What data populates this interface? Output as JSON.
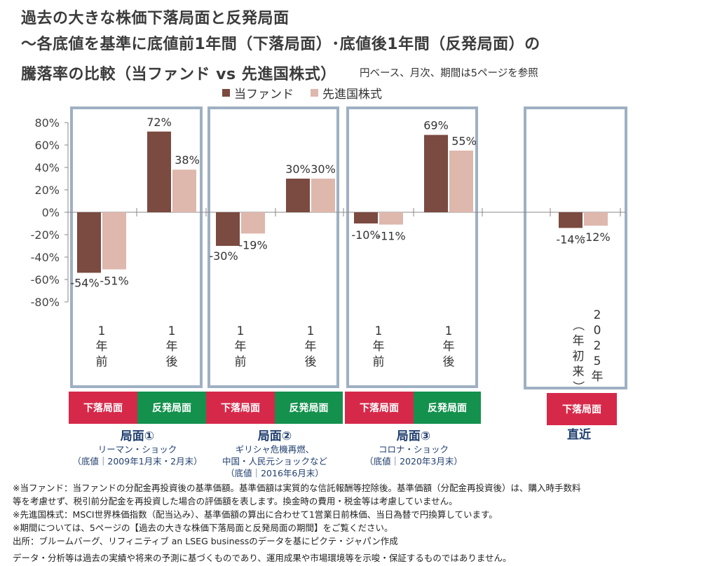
{
  "header": {
    "title_line1": "過去の大きな株価下落局面と反発局面",
    "title_line2": "～各底値を基準に底値前1年間（下落局面）･底値後1年間（反発局面）の",
    "title_line3": "騰落率の比較（当ファンド vs 先進国株式）",
    "note": "円ベース、月次、期間は5ページを参照"
  },
  "colors": {
    "fund": "#7b4a40",
    "msci": "#deb7ad",
    "frame": "#9fb0c3",
    "decline": "#d6294a",
    "rebound": "#13914d",
    "axis": "#888888",
    "phase_text": "#1f3e6e"
  },
  "chart_data": {
    "type": "bar",
    "title": "騰落率の比較（当ファンド vs 先進国株式）",
    "xlabel": "",
    "ylabel": "",
    "ylim": [
      -80,
      80
    ],
    "yticks": [
      80,
      60,
      40,
      20,
      0,
      -20,
      -40,
      -60,
      -80
    ],
    "ytick_labels": [
      "80%",
      "60%",
      "40%",
      "20%",
      "0%",
      "-20%",
      "-40%",
      "-60%",
      "-80%"
    ],
    "grid": false,
    "legend": "top-center",
    "categories": [
      "1年前",
      "1年後",
      "1年前",
      "1年後",
      "1年前",
      "1年後",
      "2025年（年初来）"
    ],
    "category_labels_vertical": [
      [
        "1",
        "年",
        "前"
      ],
      [
        "1",
        "年",
        "後"
      ],
      [
        "1",
        "年",
        "前"
      ],
      [
        "1",
        "年",
        "後"
      ],
      [
        "1",
        "年",
        "前"
      ],
      [
        "1",
        "年",
        "後"
      ],
      [
        "2",
        "0",
        "2",
        "5",
        "年"
      ]
    ],
    "ytd_sub_label": [
      "（",
      "年",
      "初",
      "来",
      "）"
    ],
    "series": [
      {
        "name": "当ファンド",
        "values": [
          -54,
          72,
          -30,
          30,
          -10,
          69,
          -14
        ],
        "labels": [
          "-54%",
          "72%",
          "-30%",
          "30%",
          "-10%",
          "69%",
          "-14%"
        ]
      },
      {
        "name": "先進国株式",
        "values": [
          -51,
          38,
          -19,
          30,
          -11,
          55,
          -12
        ],
        "labels": [
          "-51%",
          "38%",
          "-19%",
          "30%",
          "-11%",
          "55%",
          "-12%"
        ]
      }
    ]
  },
  "phases": [
    {
      "decline_label": "下落局面",
      "rebound_label": "反発局面",
      "name": "局面①",
      "desc1": "リーマン・ショック",
      "desc2": "（底値｜2009年1月末・2月末）"
    },
    {
      "decline_label": "下落局面",
      "rebound_label": "反発局面",
      "name": "局面②",
      "desc1": "ギリシャ危機再燃、",
      "desc2": "中国・人民元ショックなど",
      "desc3": "（底値｜2016年6月末）"
    },
    {
      "decline_label": "下落局面",
      "rebound_label": "反発局面",
      "name": "局面③",
      "desc1": "コロナ・ショック",
      "desc2": "（底値｜2020年3月末）"
    },
    {
      "decline_label": "下落局面",
      "name": "直近"
    }
  ],
  "footnotes": [
    "※当ファンド：当ファンドの分配金再投資後の基準価額。基準価額は実質的な信託報酬等控除後。基準価額（分配金再投資後）は、購入時手数料",
    "等を考慮せず、税引前分配金を再投資した場合の評価額を表します。換金時の費用・税金等は考慮していません。",
    "※先進国株式：MSCI世界株価指数（配当込み）、基準価額の算出に合わせて1営業日前株価、当日為替で円換算しています。",
    "※期間については、5ページの【過去の大きな株価下落局面と反発局面の期間】をご覧ください。",
    "出所：ブルームバーグ、リフィニティブ an LSEG businessのデータを基にピクテ・ジャパン作成",
    "データ・分析等は過去の実績や将来の予測に基づくものであり、運用成果や市場環境等を示唆・保証するものではありません。"
  ]
}
